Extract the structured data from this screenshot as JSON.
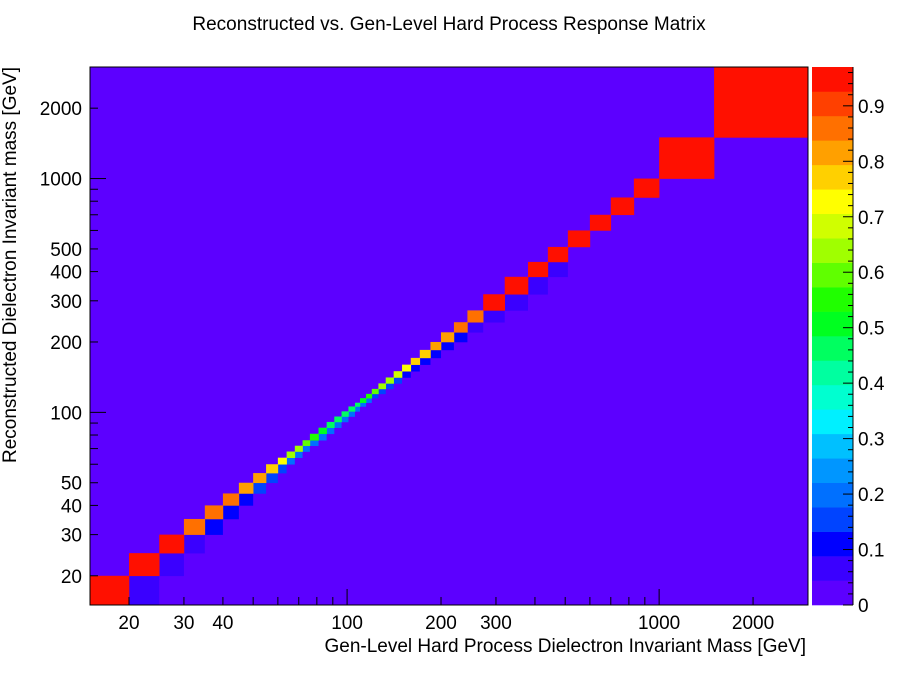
{
  "chart_data": {
    "type": "heatmap",
    "title": "Reconstructed vs. Gen-Level Hard Process Response Matrix",
    "xlabel": "Gen-Level Hard Process Dielectron Invariant Mass [GeV]",
    "ylabel": "Reconstructed Dielectron Invariant mass [GeV]",
    "x_scale": "log",
    "y_scale": "log",
    "xlim": [
      15,
      3000
    ],
    "ylim": [
      15,
      3000
    ],
    "x_tick_labels": [
      {
        "value": 20,
        "label": "20"
      },
      {
        "value": 30,
        "label": "30"
      },
      {
        "value": 40,
        "label": "40"
      },
      {
        "value": 100,
        "label": "100"
      },
      {
        "value": 200,
        "label": "200"
      },
      {
        "value": 300,
        "label": "300"
      },
      {
        "value": 1000,
        "label": "1000"
      },
      {
        "value": 2000,
        "label": "2000"
      }
    ],
    "y_tick_labels": [
      {
        "value": 20,
        "label": "20"
      },
      {
        "value": 30,
        "label": "30"
      },
      {
        "value": 40,
        "label": "40"
      },
      {
        "value": 50,
        "label": "50"
      },
      {
        "value": 100,
        "label": "100"
      },
      {
        "value": 200,
        "label": "200"
      },
      {
        "value": 300,
        "label": "300"
      },
      {
        "value": 400,
        "label": "400"
      },
      {
        "value": 500,
        "label": "500"
      },
      {
        "value": 1000,
        "label": "1000"
      },
      {
        "value": 2000,
        "label": "2000"
      }
    ],
    "bin_edges": [
      15,
      20,
      25,
      30,
      35,
      40,
      45,
      50,
      55,
      60,
      64,
      68,
      72,
      76,
      81,
      86,
      91,
      96,
      101,
      106,
      110,
      115,
      120,
      126,
      133,
      141,
      150,
      160,
      171,
      185,
      200,
      220,
      243,
      273,
      320,
      380,
      440,
      510,
      600,
      700,
      830,
      1000,
      1500,
      3000
    ],
    "diagonal_values": [
      0.97,
      0.96,
      0.95,
      0.88,
      0.87,
      0.84,
      0.82,
      0.8,
      0.76,
      0.72,
      0.66,
      0.62,
      0.58,
      0.55,
      0.5,
      0.48,
      0.45,
      0.45,
      0.46,
      0.48,
      0.52,
      0.55,
      0.6,
      0.64,
      0.66,
      0.7,
      0.72,
      0.75,
      0.78,
      0.8,
      0.83,
      0.85,
      0.88,
      0.93,
      0.95,
      0.95,
      0.96,
      0.96,
      0.96,
      0.96,
      0.97,
      0.98,
      0.99
    ],
    "offdiag_below_values": [
      0.05,
      0.06,
      0.08,
      0.1,
      0.12,
      0.13,
      0.14,
      0.15,
      0.17,
      0.18,
      0.19,
      0.2,
      0.2,
      0.21,
      0.22,
      0.22,
      0.22,
      0.21,
      0.2,
      0.19,
      0.18,
      0.17,
      0.16,
      0.15,
      0.14,
      0.13,
      0.12,
      0.12,
      0.11,
      0.1,
      0.09,
      0.08,
      0.07,
      0.06,
      0.05,
      0.05,
      0.04,
      0.04,
      0.04,
      0.04,
      0.03,
      0.03
    ],
    "colorbar": {
      "range": [
        0,
        0.97
      ],
      "tick_labels": [
        {
          "value": 0,
          "label": "0"
        },
        {
          "value": 0.1,
          "label": "0.1"
        },
        {
          "value": 0.2,
          "label": "0.2"
        },
        {
          "value": 0.3,
          "label": "0.3"
        },
        {
          "value": 0.4,
          "label": "0.4"
        },
        {
          "value": 0.5,
          "label": "0.5"
        },
        {
          "value": 0.6,
          "label": "0.6"
        },
        {
          "value": 0.7,
          "label": "0.7"
        },
        {
          "value": 0.8,
          "label": "0.8"
        },
        {
          "value": 0.9,
          "label": "0.9"
        }
      ],
      "colors": [
        "#5c00ff",
        "#3a00ff",
        "#0000ff",
        "#0044ff",
        "#0070ff",
        "#0096ff",
        "#00c0ff",
        "#00f0ff",
        "#00ffd0",
        "#00ffa0",
        "#00ff60",
        "#00ff20",
        "#20ff00",
        "#60ff00",
        "#a0ff00",
        "#d0ff00",
        "#ffff00",
        "#ffd000",
        "#ffa000",
        "#ff7000",
        "#ff4000",
        "#ff1000"
      ]
    },
    "grid": false,
    "legend": "colorbar-right"
  }
}
